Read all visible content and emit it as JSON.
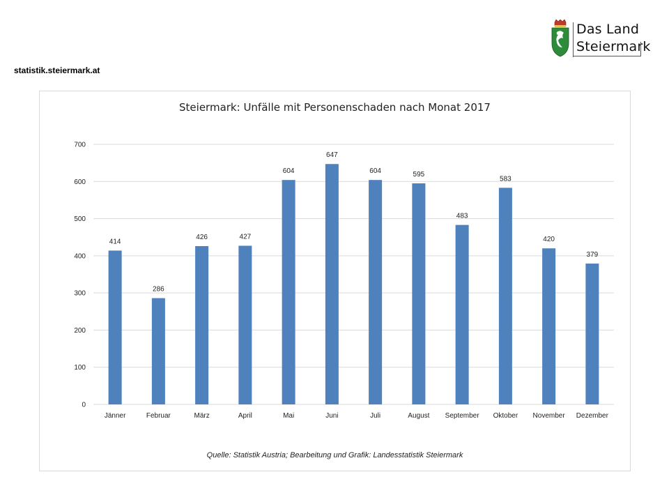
{
  "header": {
    "site_url": "statistik.steiermark.at",
    "logo_line1": "Das Land",
    "logo_line2": "Steiermark"
  },
  "colors": {
    "bar": "#4f81bd",
    "grid": "#d9d9d9",
    "crest_green": "#2e8b3a",
    "crest_red": "#c0392b"
  },
  "chart_data": {
    "type": "bar",
    "title": "Steiermark: Unfälle mit Personenschaden nach Monat 2017",
    "xlabel": "",
    "ylabel": "",
    "ylim": [
      0,
      700
    ],
    "yticks": [
      0,
      100,
      200,
      300,
      400,
      500,
      600,
      700
    ],
    "grid": true,
    "legend": "none",
    "categories": [
      "Jänner",
      "Februar",
      "März",
      "April",
      "Mai",
      "Juni",
      "Juli",
      "August",
      "September",
      "Oktober",
      "November",
      "Dezember"
    ],
    "values": [
      414,
      286,
      426,
      427,
      604,
      647,
      604,
      595,
      483,
      583,
      420,
      379
    ],
    "data_labels": true
  },
  "footer": {
    "source": "Quelle: Statistik Austria; Bearbeitung und Grafik: Landesstatistik Steiermark"
  }
}
